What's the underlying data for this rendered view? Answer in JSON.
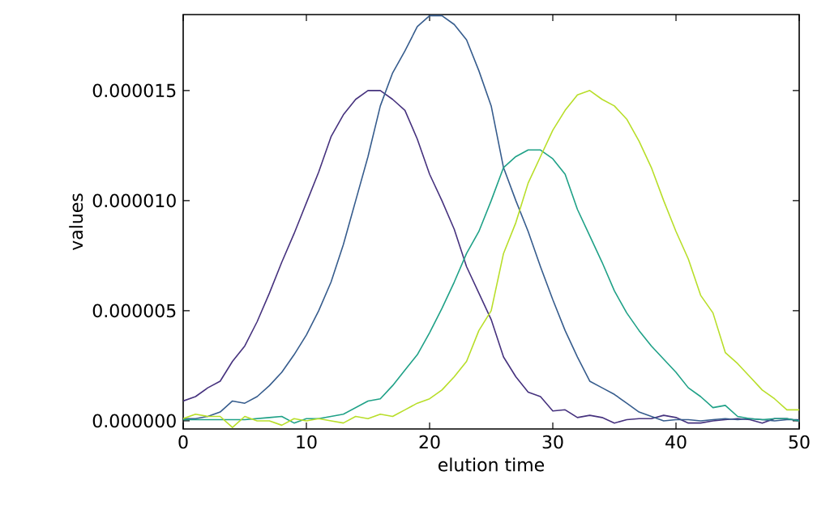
{
  "chart_data": {
    "type": "line",
    "xlabel": "elution time",
    "ylabel": "values",
    "x": [
      0,
      1,
      2,
      3,
      4,
      5,
      6,
      7,
      8,
      9,
      10,
      11,
      12,
      13,
      14,
      15,
      16,
      17,
      18,
      19,
      20,
      21,
      22,
      23,
      24,
      25,
      26,
      27,
      28,
      29,
      30,
      31,
      32,
      33,
      34,
      35,
      36,
      37,
      38,
      39,
      40,
      41,
      42,
      43,
      44,
      45,
      46,
      47,
      48,
      49,
      50
    ],
    "series": [
      {
        "color": "#46327e",
        "values": [
          9e-07,
          1.1e-06,
          1.5e-06,
          1.8e-06,
          2.7e-06,
          3.4e-06,
          4.5e-06,
          5.8e-06,
          7.2e-06,
          8.5e-06,
          9.9e-06,
          1.13e-05,
          1.29e-05,
          1.39e-05,
          1.46e-05,
          1.5e-05,
          1.5e-05,
          1.46e-05,
          1.41e-05,
          1.28e-05,
          1.12e-05,
          1e-05,
          8.7e-06,
          7e-06,
          5.8e-06,
          4.6e-06,
          2.9e-06,
          2e-06,
          1.3e-06,
          1.1e-06,
          4.5e-07,
          5e-07,
          1.5e-07,
          2.5e-07,
          1.5e-07,
          -1e-07,
          5e-08,
          1e-07,
          1e-07,
          2.5e-07,
          1.5e-07,
          -1e-07,
          -1e-07,
          0.0,
          5e-08,
          1e-07,
          5e-08,
          -1e-07,
          1e-07,
          1e-07,
          0.0
        ]
      },
      {
        "color": "#365c8d",
        "values": [
          1e-07,
          1e-07,
          2e-07,
          4e-07,
          9e-07,
          8e-07,
          1.1e-06,
          1.6e-06,
          2.2e-06,
          3e-06,
          3.9e-06,
          5e-06,
          6.3e-06,
          8e-06,
          1e-05,
          1.2e-05,
          1.43e-05,
          1.58e-05,
          1.68e-05,
          1.79e-05,
          1.84e-05,
          1.84e-05,
          1.8e-05,
          1.73e-05,
          1.59e-05,
          1.43e-05,
          1.15e-05,
          1e-05,
          8.6e-06,
          7e-06,
          5.5e-06,
          4.1e-06,
          2.9e-06,
          1.8e-06,
          1.5e-06,
          1.2e-06,
          8e-07,
          4e-07,
          2e-07,
          0.0,
          5e-08,
          5e-08,
          0.0,
          5e-08,
          1e-07,
          5e-08,
          1e-07,
          5e-08,
          0.0,
          5e-08,
          5e-08
        ]
      },
      {
        "color": "#1fa187",
        "values": [
          5e-08,
          5e-08,
          5e-08,
          5e-08,
          5e-08,
          5e-08,
          1e-07,
          1.5e-07,
          2e-07,
          -1e-07,
          1e-07,
          1e-07,
          2e-07,
          3e-07,
          6e-07,
          9e-07,
          1e-06,
          1.6e-06,
          2.3e-06,
          3e-06,
          4e-06,
          5.1e-06,
          6.3e-06,
          7.6e-06,
          8.6e-06,
          1e-05,
          1.15e-05,
          1.2e-05,
          1.23e-05,
          1.23e-05,
          1.19e-05,
          1.12e-05,
          9.6e-06,
          8.4e-06,
          7.2e-06,
          5.9e-06,
          4.9e-06,
          4.1e-06,
          3.4e-06,
          2.8e-06,
          2.2e-06,
          1.5e-06,
          1.1e-06,
          6e-07,
          7e-07,
          2e-07,
          1e-07,
          5e-08,
          1e-07,
          1e-07,
          0.0
        ]
      },
      {
        "color": "#b8de29",
        "values": [
          1e-07,
          3e-07,
          2e-07,
          2e-07,
          -3e-07,
          2e-07,
          0.0,
          0.0,
          -2e-07,
          1e-07,
          0.0,
          1e-07,
          0.0,
          -1e-07,
          2e-07,
          1e-07,
          3e-07,
          2e-07,
          5e-07,
          8e-07,
          1e-06,
          1.4e-06,
          2e-06,
          2.7e-06,
          4.1e-06,
          5e-06,
          7.6e-06,
          9e-06,
          1.08e-05,
          1.2e-05,
          1.32e-05,
          1.41e-05,
          1.48e-05,
          1.5e-05,
          1.46e-05,
          1.43e-05,
          1.37e-05,
          1.27e-05,
          1.15e-05,
          1e-05,
          8.6e-06,
          7.35e-06,
          5.7e-06,
          4.9e-06,
          3.1e-06,
          2.6e-06,
          2e-06,
          1.4e-06,
          1e-06,
          5e-07,
          5e-07
        ]
      }
    ],
    "xlim": [
      0,
      50
    ],
    "xticks": [
      0,
      10,
      20,
      30,
      40,
      50
    ],
    "ylim": [
      -3.7e-07,
      1.845e-05
    ],
    "yticks": [
      {
        "value": 0,
        "label": "0.000000"
      },
      {
        "value": 5e-06,
        "label": "0.000005"
      },
      {
        "value": 1e-05,
        "label": "0.000010"
      },
      {
        "value": 1.5e-05,
        "label": "0.000015"
      }
    ],
    "grid": false,
    "marker": "none",
    "line_style": "solid"
  }
}
